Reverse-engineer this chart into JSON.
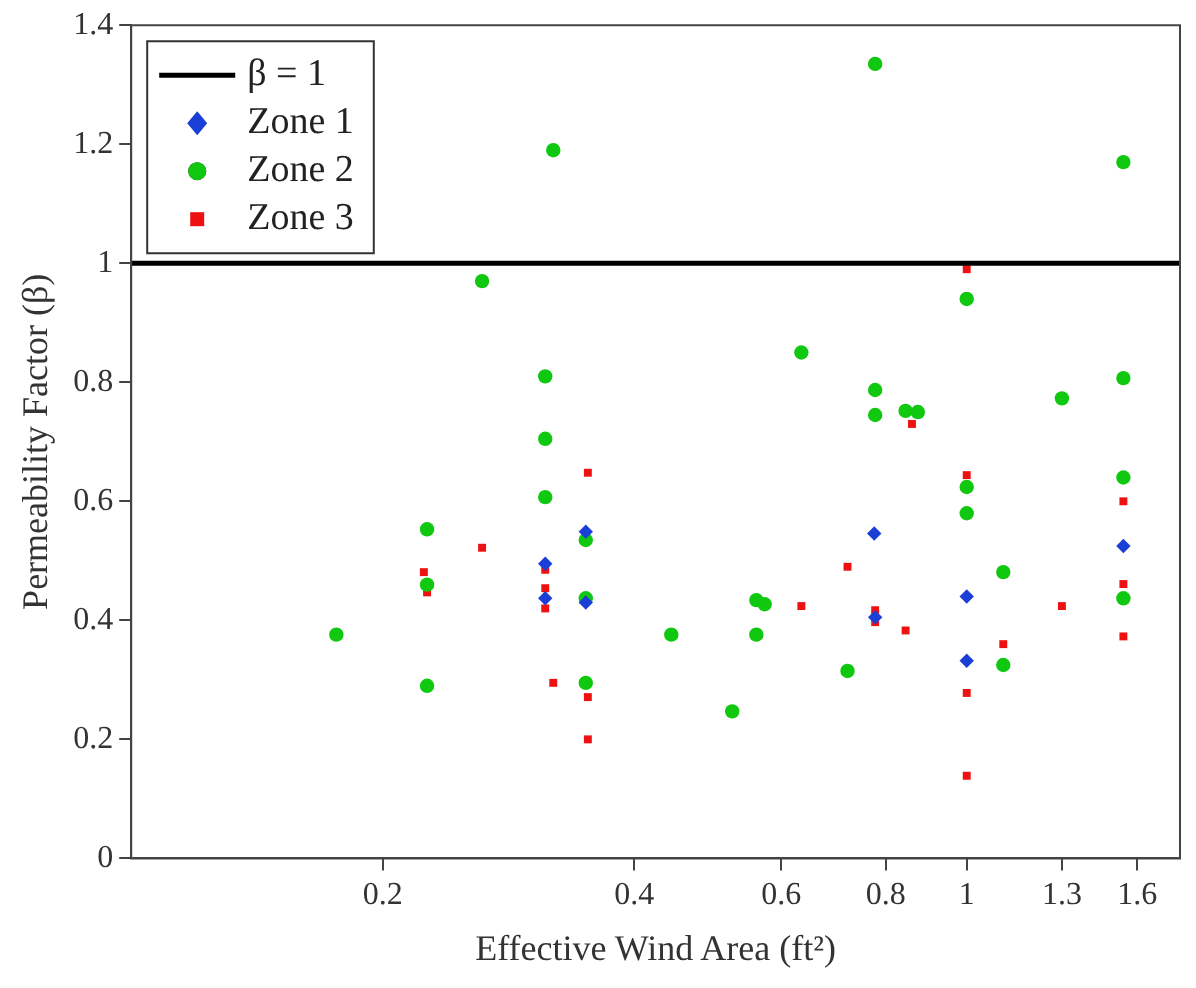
{
  "chart_data": {
    "type": "scatter",
    "xlabel": "Effective Wind Area (ft²)",
    "ylabel": "Permeability Factor (β)",
    "log": "x",
    "xlim": [
      0.1,
      1.8
    ],
    "xticks": [
      0.2,
      0.4,
      0.6,
      0.8,
      1,
      1.3,
      1.6
    ],
    "ylim": [
      0,
      1.4
    ],
    "yticks": [
      0,
      0.2,
      0.4,
      0.6,
      0.8,
      1,
      1.2,
      1.4
    ],
    "grid": false,
    "legend": "top left",
    "ref_lines": [
      {
        "axis": "y",
        "value": 1,
        "label": "β = 1",
        "color": "#000000",
        "line_style": "solid"
      }
    ],
    "series": [
      {
        "name": "Zone 1",
        "color": "#1a3fd6",
        "marker": "diamond",
        "x": [
          0.313,
          0.313,
          0.35,
          0.35,
          0.775,
          0.777,
          1.0,
          1.0,
          1.54
        ],
        "values": [
          0.495,
          0.437,
          0.549,
          0.43,
          0.546,
          0.405,
          0.44,
          0.332,
          0.525
        ]
      },
      {
        "name": "Zone 2",
        "color": "#10c810",
        "marker": "circle",
        "x": [
          0.32,
          0.263,
          0.313,
          0.313,
          0.313,
          0.226,
          0.226,
          0.226,
          0.176,
          0.35,
          0.35,
          0.35,
          0.443,
          0.524,
          0.56,
          0.573,
          0.56,
          0.72,
          1.0,
          1.0,
          1.106,
          1.106,
          1.54,
          1.54,
          0.777,
          1.54,
          1.0,
          0.634,
          0.777,
          0.777,
          0.845,
          0.874,
          1.3,
          1.54
        ],
        "values": [
          1.19,
          0.97,
          0.81,
          0.705,
          0.607,
          0.553,
          0.46,
          0.29,
          0.376,
          0.535,
          0.437,
          0.295,
          0.376,
          0.247,
          0.434,
          0.427,
          0.376,
          0.315,
          0.624,
          0.58,
          0.481,
          0.325,
          0.64,
          0.437,
          1.335,
          1.17,
          0.94,
          0.85,
          0.787,
          0.745,
          0.752,
          0.75,
          0.773,
          0.807
        ]
      },
      {
        "name": "Zone 3",
        "color": "#ee1111",
        "marker": "square",
        "x": [
          0.352,
          0.263,
          0.224,
          0.226,
          0.313,
          0.313,
          0.313,
          0.32,
          0.352,
          0.352,
          0.634,
          0.72,
          0.777,
          0.777,
          0.845,
          0.86,
          1.0,
          1.0,
          1.0,
          1.0,
          1.106,
          1.3,
          1.54,
          1.54,
          1.54
        ],
        "values": [
          0.648,
          0.522,
          0.481,
          0.447,
          0.485,
          0.454,
          0.42,
          0.295,
          0.271,
          0.2,
          0.424,
          0.49,
          0.417,
          0.397,
          0.383,
          0.73,
          0.644,
          0.99,
          0.278,
          0.139,
          0.36,
          0.424,
          0.6,
          0.461,
          0.373
        ]
      }
    ]
  }
}
